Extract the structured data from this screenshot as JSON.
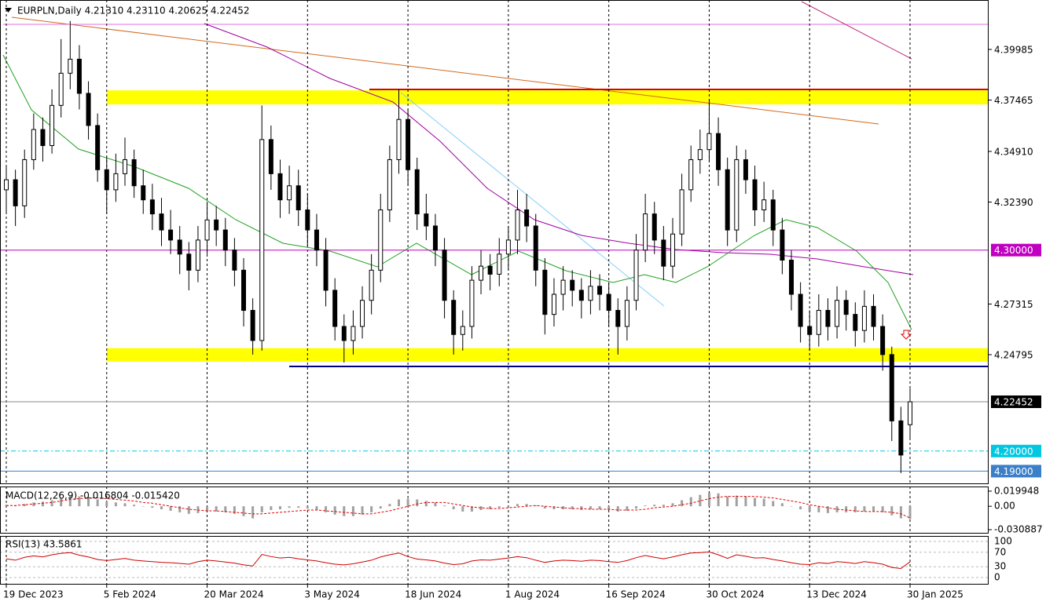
{
  "chart_data": {
    "type": "candlestick",
    "title": "EURPLN,Daily  4.21310 4.23110 4.20625 4.22452",
    "categories": [
      "19 Dec 2023",
      null,
      null,
      null,
      null,
      null,
      null,
      null,
      null,
      null,
      null,
      "5 Feb 2024",
      null,
      null,
      null,
      null,
      null,
      null,
      null,
      null,
      null,
      null,
      "20 Mar 2024",
      null,
      null,
      null,
      null,
      null,
      null,
      null,
      null,
      null,
      null,
      "3 May 2024",
      null,
      null,
      null,
      null,
      null,
      null,
      null,
      null,
      null,
      null,
      "18 Jun 2024",
      null,
      null,
      null,
      null,
      null,
      null,
      null,
      null,
      null,
      null,
      "1 Aug 2024",
      null,
      null,
      null,
      null,
      null,
      null,
      null,
      null,
      null,
      null,
      "16 Sep 2024",
      null,
      null,
      null,
      null,
      null,
      null,
      null,
      null,
      null,
      null,
      "30 Oct 2024",
      null,
      null,
      null,
      null,
      null,
      null,
      null,
      null,
      null,
      null,
      "13 Dec 2024",
      null,
      null,
      null,
      null,
      null,
      null,
      null,
      null,
      null,
      null,
      "30 Jan 2025"
    ],
    "ohlc": [
      [
        4.33,
        4.342,
        4.318,
        4.335
      ],
      [
        4.335,
        4.34,
        4.312,
        4.322
      ],
      [
        4.322,
        4.35,
        4.316,
        4.345
      ],
      [
        4.345,
        4.368,
        4.34,
        4.36
      ],
      [
        4.36,
        4.366,
        4.344,
        4.352
      ],
      [
        4.352,
        4.38,
        4.348,
        4.372
      ],
      [
        4.372,
        4.405,
        4.366,
        4.388
      ],
      [
        4.388,
        4.414,
        4.38,
        4.395
      ],
      [
        4.395,
        4.402,
        4.37,
        4.378
      ],
      [
        4.378,
        4.384,
        4.355,
        4.362
      ],
      [
        4.362,
        4.368,
        4.334,
        4.34
      ],
      [
        4.34,
        4.346,
        4.318,
        4.33
      ],
      [
        4.33,
        4.348,
        4.324,
        4.338
      ],
      [
        4.338,
        4.356,
        4.332,
        4.345
      ],
      [
        4.345,
        4.35,
        4.326,
        4.332
      ],
      [
        4.332,
        4.34,
        4.318,
        4.325
      ],
      [
        4.325,
        4.333,
        4.31,
        4.318
      ],
      [
        4.318,
        4.326,
        4.302,
        4.31
      ],
      [
        4.31,
        4.32,
        4.298,
        4.305
      ],
      [
        4.305,
        4.312,
        4.288,
        4.298
      ],
      [
        4.298,
        4.304,
        4.28,
        4.29
      ],
      [
        4.29,
        4.312,
        4.284,
        4.305
      ],
      [
        4.305,
        4.324,
        4.298,
        4.315
      ],
      [
        4.315,
        4.322,
        4.302,
        4.31
      ],
      [
        4.31,
        4.316,
        4.292,
        4.3
      ],
      [
        4.3,
        4.306,
        4.282,
        4.29
      ],
      [
        4.29,
        4.296,
        4.262,
        4.27
      ],
      [
        4.27,
        4.276,
        4.248,
        4.255
      ],
      [
        4.255,
        4.372,
        4.25,
        4.355
      ],
      [
        4.355,
        4.362,
        4.33,
        4.338
      ],
      [
        4.338,
        4.345,
        4.316,
        4.325
      ],
      [
        4.325,
        4.342,
        4.318,
        4.332
      ],
      [
        4.332,
        4.34,
        4.312,
        4.32
      ],
      [
        4.32,
        4.328,
        4.302,
        4.31
      ],
      [
        4.31,
        4.318,
        4.292,
        4.3
      ],
      [
        4.3,
        4.306,
        4.272,
        4.28
      ],
      [
        4.28,
        4.286,
        4.255,
        4.262
      ],
      [
        4.262,
        4.268,
        4.244,
        4.255
      ],
      [
        4.255,
        4.27,
        4.248,
        4.262
      ],
      [
        4.262,
        4.282,
        4.256,
        4.275
      ],
      [
        4.275,
        4.298,
        4.268,
        4.29
      ],
      [
        4.29,
        4.328,
        4.284,
        4.32
      ],
      [
        4.32,
        4.352,
        4.314,
        4.345
      ],
      [
        4.345,
        4.38,
        4.338,
        4.365
      ],
      [
        4.365,
        4.37,
        4.332,
        4.34
      ],
      [
        4.34,
        4.346,
        4.31,
        4.318
      ],
      [
        4.318,
        4.328,
        4.305,
        4.312
      ],
      [
        4.312,
        4.318,
        4.292,
        4.3
      ],
      [
        4.3,
        4.306,
        4.266,
        4.275
      ],
      [
        4.275,
        4.28,
        4.248,
        4.258
      ],
      [
        4.258,
        4.27,
        4.25,
        4.262
      ],
      [
        4.262,
        4.292,
        4.256,
        4.285
      ],
      [
        4.285,
        4.3,
        4.278,
        4.292
      ],
      [
        4.292,
        4.298,
        4.28,
        4.288
      ],
      [
        4.288,
        4.306,
        4.282,
        4.298
      ],
      [
        4.298,
        4.312,
        4.29,
        4.305
      ],
      [
        4.305,
        4.33,
        4.298,
        4.32
      ],
      [
        4.32,
        4.328,
        4.304,
        4.312
      ],
      [
        4.312,
        4.318,
        4.282,
        4.29
      ],
      [
        4.29,
        4.296,
        4.258,
        4.268
      ],
      [
        4.268,
        4.286,
        4.262,
        4.278
      ],
      [
        4.278,
        4.292,
        4.27,
        4.285
      ],
      [
        4.285,
        4.29,
        4.272,
        4.28
      ],
      [
        4.28,
        4.286,
        4.266,
        4.275
      ],
      [
        4.275,
        4.29,
        4.268,
        4.282
      ],
      [
        4.282,
        4.288,
        4.27,
        4.278
      ],
      [
        4.278,
        4.284,
        4.262,
        4.27
      ],
      [
        4.27,
        4.276,
        4.248,
        4.262
      ],
      [
        4.262,
        4.282,
        4.255,
        4.275
      ],
      [
        4.275,
        4.308,
        4.27,
        4.3
      ],
      [
        4.3,
        4.328,
        4.294,
        4.318
      ],
      [
        4.318,
        4.324,
        4.298,
        4.305
      ],
      [
        4.305,
        4.312,
        4.285,
        4.292
      ],
      [
        4.292,
        4.316,
        4.286,
        4.308
      ],
      [
        4.308,
        4.338,
        4.302,
        4.33
      ],
      [
        4.33,
        4.352,
        4.324,
        4.345
      ],
      [
        4.345,
        4.36,
        4.338,
        4.35
      ],
      [
        4.35,
        4.375,
        4.344,
        4.358
      ],
      [
        4.358,
        4.366,
        4.332,
        4.34
      ],
      [
        4.34,
        4.346,
        4.302,
        4.31
      ],
      [
        4.31,
        4.352,
        4.304,
        4.345
      ],
      [
        4.345,
        4.35,
        4.328,
        4.335
      ],
      [
        4.335,
        4.342,
        4.312,
        4.32
      ],
      [
        4.32,
        4.334,
        4.314,
        4.325
      ],
      [
        4.325,
        4.33,
        4.302,
        4.31
      ],
      [
        4.31,
        4.316,
        4.288,
        4.295
      ],
      [
        4.295,
        4.3,
        4.27,
        4.278
      ],
      [
        4.278,
        4.284,
        4.254,
        4.262
      ],
      [
        4.262,
        4.27,
        4.25,
        4.258
      ],
      [
        4.258,
        4.278,
        4.252,
        4.27
      ],
      [
        4.27,
        4.276,
        4.255,
        4.262
      ],
      [
        4.262,
        4.282,
        4.256,
        4.275
      ],
      [
        4.275,
        4.28,
        4.26,
        4.268
      ],
      [
        4.268,
        4.274,
        4.252,
        4.26
      ],
      [
        4.26,
        4.28,
        4.254,
        4.272
      ],
      [
        4.272,
        4.278,
        4.255,
        4.262
      ],
      [
        4.262,
        4.268,
        4.24,
        4.248
      ],
      [
        4.248,
        4.252,
        4.205,
        4.215
      ],
      [
        4.215,
        4.222,
        4.189,
        4.198
      ],
      [
        4.2131,
        4.2311,
        4.20625,
        4.22452
      ]
    ],
    "up_color": "#ffffff",
    "down_color": "#000000",
    "ylim": [
      4.18352,
      4.42445
    ],
    "yticks": [
      4.39985,
      4.37465,
      {
        "value": 4.3491,
        "label": "4.34910"
      },
      {
        "value": 4.3239,
        "label": "4.32390"
      },
      {
        "value": 4.3,
        "label": "4.30000",
        "color": "#c000c0"
      },
      4.27315,
      4.24795,
      {
        "value": 4.22452,
        "label": "4.22452",
        "color": "#000000"
      },
      {
        "value": 4.2,
        "label": "4.20000",
        "color": "#00c8e0",
        "dash": true
      },
      {
        "value": 4.19,
        "label": "4.19000",
        "color": "#3a7fc8"
      }
    ],
    "zones": [
      {
        "from": 4.3725,
        "to": 4.3795,
        "start": 11,
        "color": "#ffff00"
      },
      {
        "from": 4.2445,
        "to": 4.2512,
        "start": 11,
        "color": "#ffff00"
      }
    ],
    "macd": {
      "label": "MACD(12,26,9) -0.016804 -0.015420",
      "hist_color": "#a0a0a0",
      "signal_color": "#e00000",
      "ylim": [
        -0.035,
        0.025
      ],
      "yticks": [
        0.019948,
        {
          "value": 0,
          "label": "0.00"
        },
        -0.030887
      ],
      "histogram": [
        0.002,
        0.001,
        0.003,
        0.005,
        0.006,
        0.008,
        0.011,
        0.013,
        0.013,
        0.012,
        0.009,
        0.006,
        0.005,
        0.004,
        0.002,
        0.0,
        -0.002,
        -0.004,
        -0.006,
        -0.008,
        -0.01,
        -0.009,
        -0.007,
        -0.007,
        -0.008,
        -0.01,
        -0.013,
        -0.016,
        -0.008,
        -0.005,
        -0.004,
        -0.002,
        -0.002,
        -0.003,
        -0.005,
        -0.008,
        -0.011,
        -0.013,
        -0.013,
        -0.011,
        -0.008,
        -0.003,
        0.003,
        0.009,
        0.01,
        0.009,
        0.007,
        0.005,
        0.001,
        -0.004,
        -0.007,
        -0.007,
        -0.005,
        -0.004,
        -0.002,
        0.0,
        0.003,
        0.003,
        0.001,
        -0.003,
        -0.004,
        -0.004,
        -0.004,
        -0.005,
        -0.004,
        -0.004,
        -0.005,
        -0.007,
        -0.006,
        -0.003,
        0.001,
        0.002,
        0.002,
        0.004,
        0.008,
        0.012,
        0.015,
        0.018,
        0.017,
        0.013,
        0.014,
        0.013,
        0.011,
        0.01,
        0.007,
        0.004,
        0.0,
        -0.004,
        -0.007,
        -0.008,
        -0.009,
        -0.008,
        -0.008,
        -0.008,
        -0.007,
        -0.007,
        -0.008,
        -0.012,
        -0.016,
        -0.016804
      ],
      "signal": [
        0.001,
        0.001,
        0.002,
        0.003,
        0.004,
        0.005,
        0.007,
        0.009,
        0.01,
        0.011,
        0.011,
        0.01,
        0.009,
        0.008,
        0.007,
        0.005,
        0.004,
        0.002,
        0.0,
        -0.002,
        -0.004,
        -0.005,
        -0.006,
        -0.006,
        -0.007,
        -0.008,
        -0.009,
        -0.01,
        -0.01,
        -0.009,
        -0.008,
        -0.007,
        -0.006,
        -0.005,
        -0.005,
        -0.006,
        -0.007,
        -0.008,
        -0.009,
        -0.01,
        -0.01,
        -0.008,
        -0.006,
        -0.003,
        0.0,
        0.003,
        0.005,
        0.005,
        0.005,
        0.003,
        0.001,
        -0.001,
        -0.002,
        -0.003,
        -0.003,
        -0.002,
        -0.001,
        0.0,
        0.001,
        0.0,
        -0.001,
        -0.002,
        -0.003,
        -0.003,
        -0.004,
        -0.004,
        -0.004,
        -0.005,
        -0.005,
        -0.005,
        -0.004,
        -0.002,
        -0.001,
        0.0,
        0.002,
        0.004,
        0.007,
        0.01,
        0.012,
        0.013,
        0.013,
        0.013,
        0.013,
        0.012,
        0.011,
        0.009,
        0.007,
        0.005,
        0.002,
        0.0,
        -0.002,
        -0.004,
        -0.005,
        -0.006,
        -0.007,
        -0.007,
        -0.007,
        -0.008,
        -0.01,
        -0.01542
      ]
    },
    "rsi": {
      "label": "RSI(13) 43.5861",
      "color": "#d00000",
      "ylim": [
        0,
        100
      ],
      "yticks": [
        100,
        70,
        30,
        0
      ],
      "values": [
        52,
        48,
        56,
        60,
        57,
        63,
        67,
        69,
        62,
        57,
        50,
        47,
        50,
        53,
        48,
        46,
        44,
        42,
        41,
        39,
        37,
        44,
        48,
        46,
        43,
        40,
        35,
        32,
        64,
        58,
        54,
        56,
        52,
        49,
        46,
        41,
        37,
        35,
        38,
        43,
        48,
        57,
        63,
        68,
        58,
        51,
        49,
        46,
        40,
        36,
        38,
        46,
        49,
        48,
        51,
        54,
        58,
        55,
        48,
        42,
        46,
        48,
        47,
        45,
        48,
        47,
        44,
        42,
        47,
        55,
        61,
        56,
        52,
        57,
        63,
        68,
        69,
        71,
        63,
        53,
        63,
        59,
        54,
        55,
        50,
        46,
        41,
        37,
        36,
        41,
        39,
        44,
        42,
        39,
        44,
        41,
        37,
        28,
        25,
        43.5861
      ]
    }
  }
}
